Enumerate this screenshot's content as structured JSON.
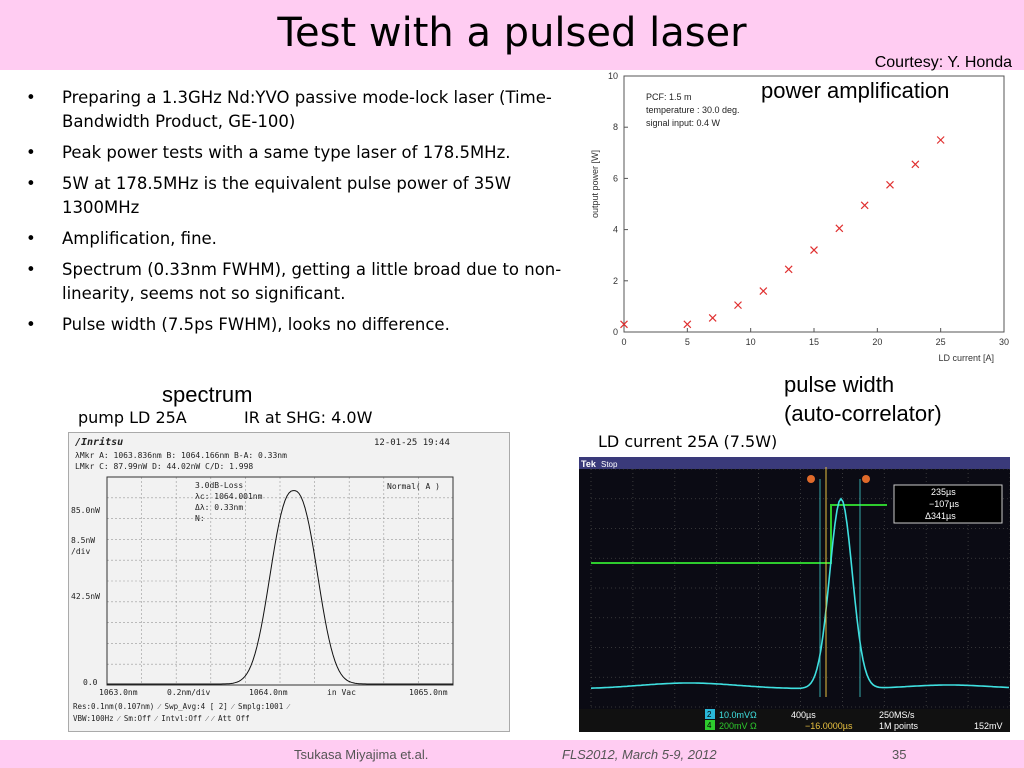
{
  "slide": {
    "title": "Test with a pulsed laser",
    "courtesy": "Courtesy: Y. Honda",
    "bullets": [
      "Preparing a 1.3GHz Nd:YVO passive mode-lock laser (Time-Bandwidth Product, GE-100)",
      "Peak power tests with a same type laser of 178.5MHz.",
      "5W at 178.5MHz is the equivalent pulse power of 35W 1300MHz",
      "Amplification, fine.",
      "Spectrum (0.33nm FWHM), getting a little broad due to non-linearity, seems not so significant.",
      "Pulse width (7.5ps FWHM), looks no difference."
    ],
    "labels": {
      "power": "power amplification",
      "spectrum": "spectrum",
      "pulse_line1": "pulse width",
      "pulse_line2": "(auto-correlator)"
    },
    "footer": {
      "author": "Tsukasa Miyajima et.al.",
      "conference": "FLS2012, March 5-9, 2012",
      "page": "35"
    }
  },
  "chart_data": {
    "type": "scatter",
    "xlabel": "LD current [A]",
    "ylabel": "output power [W]",
    "xlim": [
      0,
      30
    ],
    "ylim": [
      0,
      10
    ],
    "xticks": [
      0,
      5,
      10,
      15,
      20,
      25,
      30
    ],
    "yticks": [
      0,
      2,
      4,
      6,
      8,
      10
    ],
    "annotations": [
      "PCF: 1.5 m",
      "temperature : 30.0 deg.",
      "signal input: 0.4 W"
    ],
    "marker_color": "#e03030",
    "x": [
      0,
      5,
      7,
      9,
      11,
      13,
      15,
      17,
      19,
      21,
      23,
      25
    ],
    "y": [
      0.3,
      0.3,
      0.55,
      1.05,
      1.6,
      2.45,
      3.2,
      4.05,
      4.95,
      5.75,
      6.55,
      7.5
    ]
  },
  "spectrum_panel": {
    "header_left": "pump LD 25A",
    "header_right": "IR at SHG: 4.0W",
    "brand": "/Inritsu",
    "datetime": "12-01-25 19:44",
    "info_lines": [
      "λMkr  A:  1063.836nm     B:  1064.166nm    B-A:  0.33nm",
      "LMkr  C:  87.99nW        D:  44.02nW       C/D:  1.998"
    ],
    "loss_box": [
      "3.0dB-Loss",
      "λc: 1064.001nm",
      "Δλ:   0.33nm",
      "N:"
    ],
    "mode": "Normal( A )",
    "y_labels": [
      "85.0nW",
      "8.5nW",
      "/div",
      "42.5nW",
      "0.0"
    ],
    "x_labels": [
      "1063.0nm",
      "0.2nm/div",
      "1064.0nm",
      "in Vac",
      "1065.0nm"
    ],
    "status_lines": [
      "Res:0.1nm(0.107nm)   ⁄ Swp_Avg:4    [    2]   ⁄ Smplg:1001 ⁄",
      "VBW:100Hz            ⁄ Sm:Off    ⁄ Intvl:Off    ⁄             ⁄ Att Off"
    ]
  },
  "scope_panel": {
    "header": "LD current 25A  (7.5W)",
    "brand": "Tek",
    "state": "Stop",
    "cursor_a": "235µs",
    "cursor_b": "−107µs",
    "cursor_delta": "Δ341µs",
    "ch2_scale": "10.0mVΩ",
    "ch4_scale": "200mV Ω",
    "timebase": "400µs",
    "sample_rate": "250MS/s",
    "trigger_pos": "−16.0000µs",
    "record_len": "1M points",
    "trigger_level": "152mV",
    "ch2_label": "2",
    "ch4_label": "4"
  }
}
